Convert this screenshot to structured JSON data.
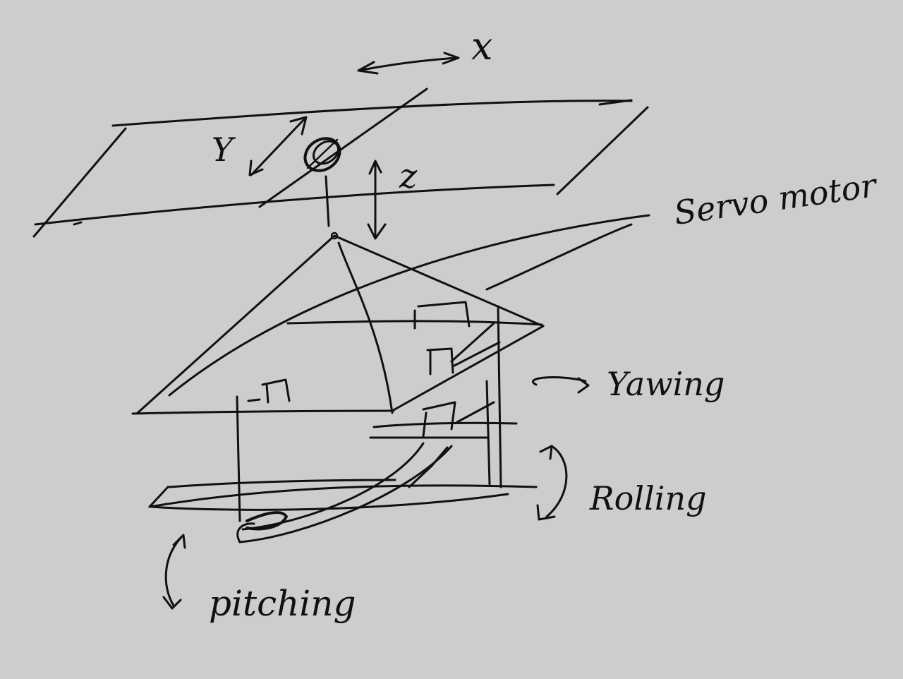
{
  "colors": {
    "background": "#cdcdcd",
    "ink": "#111111"
  },
  "labels": {
    "x": "x",
    "y": "Y",
    "z": "z",
    "servo": "Servo motor",
    "yawing": "Yawing",
    "rolling": "Rolling",
    "pitching": "pitching"
  }
}
